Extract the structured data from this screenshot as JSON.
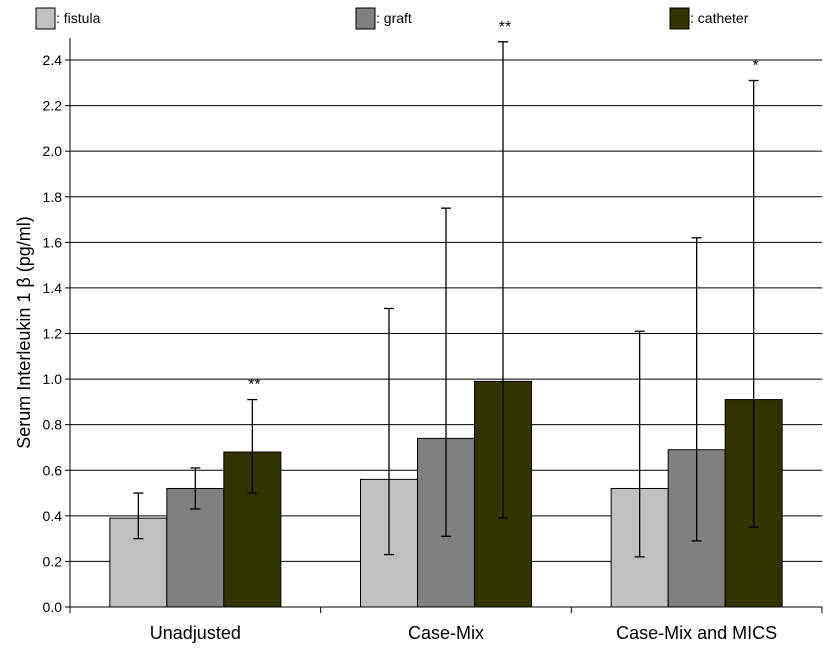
{
  "chart_data": {
    "type": "bar",
    "title": "",
    "xlabel": "",
    "ylabel": "Serum Interleukin 1 β (pg/ml)",
    "ylim": [
      0,
      2.4
    ],
    "yticks": [
      "0.0",
      "0.2",
      "0.4",
      "0.6",
      "0.8",
      "1.0",
      "1.2",
      "1.4",
      "1.6",
      "1.8",
      "2.0",
      "2.2",
      "2.4"
    ],
    "grid": true,
    "legend_position": "top",
    "categories": [
      "Unadjusted",
      "Case-Mix",
      "Case-Mix and MICS"
    ],
    "series": [
      {
        "name": ": fistula",
        "color": "#c0c0c0",
        "values": [
          0.39,
          0.56,
          0.52
        ],
        "error_low": [
          0.3,
          0.23,
          0.22
        ],
        "error_high": [
          0.5,
          1.31,
          1.21
        ]
      },
      {
        "name": ": graft",
        "color": "#808080",
        "values": [
          0.52,
          0.74,
          0.69
        ],
        "error_low": [
          0.43,
          0.31,
          0.29
        ],
        "error_high": [
          0.61,
          1.75,
          1.62
        ]
      },
      {
        "name": ": catheter",
        "color": "#333300",
        "values": [
          0.68,
          0.99,
          0.91
        ],
        "error_low": [
          0.5,
          0.39,
          0.35
        ],
        "error_high": [
          0.91,
          2.48,
          2.31
        ]
      }
    ],
    "annotations": [
      {
        "category": 0,
        "series": 2,
        "text": "**"
      },
      {
        "category": 1,
        "series": 2,
        "text": "**"
      },
      {
        "category": 2,
        "series": 2,
        "text": "*"
      }
    ]
  }
}
